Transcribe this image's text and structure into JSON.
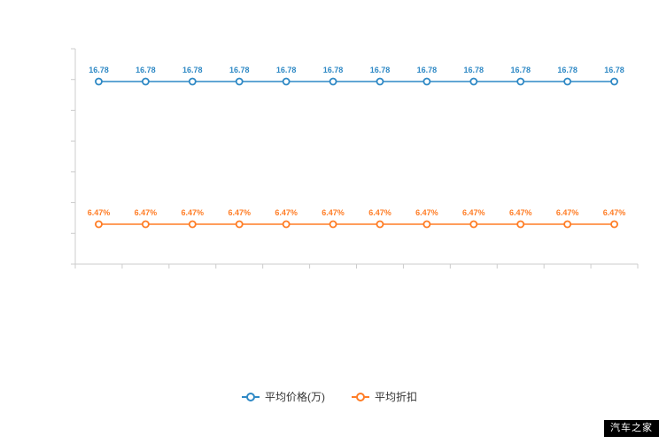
{
  "chart_data": {
    "type": "line",
    "title": "",
    "xlabel": "",
    "ylabel": "",
    "grid": false,
    "legend_position": "bottom",
    "x": [
      1,
      2,
      3,
      4,
      5,
      6,
      7,
      8,
      9,
      10,
      11,
      12
    ],
    "x_tick_labels_visible": false,
    "series": [
      {
        "name": "平均价格(万)",
        "color": "#2f89c5",
        "values": [
          16.78,
          16.78,
          16.78,
          16.78,
          16.78,
          16.78,
          16.78,
          16.78,
          16.78,
          16.78,
          16.78,
          16.78
        ],
        "labels": [
          "16.78",
          "16.78",
          "16.78",
          "16.78",
          "16.78",
          "16.78",
          "16.78",
          "16.78",
          "16.78",
          "16.78",
          "16.78",
          "16.78"
        ]
      },
      {
        "name": "平均折扣",
        "color": "#ff7d26",
        "values": [
          6.47,
          6.47,
          6.47,
          6.47,
          6.47,
          6.47,
          6.47,
          6.47,
          6.47,
          6.47,
          6.47,
          6.47
        ],
        "labels": [
          "6.47%",
          "6.47%",
          "6.47%",
          "6.47%",
          "6.47%",
          "6.47%",
          "6.47%",
          "6.47%",
          "6.47%",
          "6.47%",
          "6.47%",
          "6.47%"
        ]
      }
    ]
  },
  "legend": {
    "items": [
      {
        "label": "平均价格(万)",
        "color": "#2f89c5"
      },
      {
        "label": "平均折扣",
        "color": "#ff7d26"
      }
    ]
  },
  "watermark": {
    "text": "汽车之家",
    "bg": "#000000",
    "fg": "#ffffff"
  },
  "axis": {
    "color": "#cccccc"
  }
}
